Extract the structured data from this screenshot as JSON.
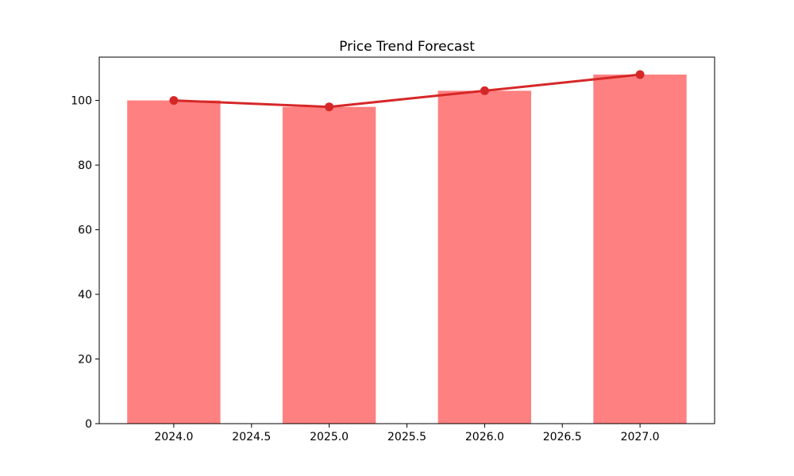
{
  "chart_data": {
    "type": "bar",
    "title": "Price Trend Forecast",
    "x": [
      2024,
      2025,
      2026,
      2027
    ],
    "series": [
      {
        "name": "price-bars",
        "type": "bar",
        "values": [
          100,
          98,
          103,
          108
        ],
        "color": "#ff8080",
        "bar_width": 0.6
      },
      {
        "name": "price-trend-line",
        "type": "line",
        "values": [
          100,
          98,
          103,
          108
        ],
        "color": "#d62728",
        "marker": "o",
        "line_width": 3,
        "marker_radius": 5.5
      }
    ],
    "x_tick_values": [
      2024,
      2024.5,
      2025,
      2025.5,
      2026,
      2026.5,
      2027
    ],
    "x_tick_labels": [
      "2024.0",
      "2024.5",
      "2025.0",
      "2025.5",
      "2026.0",
      "2026.5",
      "2027.0"
    ],
    "y_tick_values": [
      0,
      20,
      40,
      60,
      80,
      100
    ],
    "y_tick_labels": [
      "0",
      "20",
      "40",
      "60",
      "80",
      "100"
    ],
    "xlim": [
      2023.52,
      2027.48
    ],
    "ylim": [
      0,
      113.4
    ],
    "xlabel": "",
    "ylabel": "",
    "grid": false,
    "legend": null,
    "spine_color": "#000000",
    "tick_color": "#000000",
    "background": "#ffffff"
  }
}
